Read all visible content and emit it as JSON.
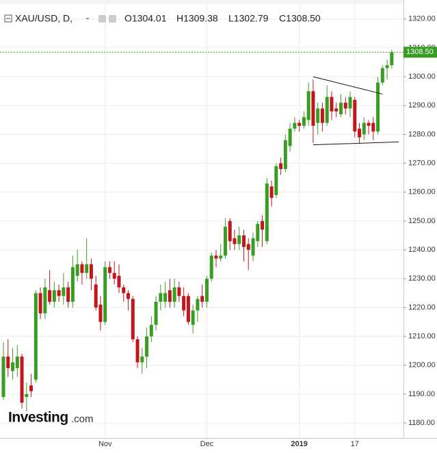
{
  "header": {
    "symbol": "XAU/USD, D,",
    "ohlc": [
      "O1304.01",
      "H1309.38",
      "L1302.79",
      "C1308.50"
    ]
  },
  "watermark": {
    "brand": "Investing",
    "suffix": ".com"
  },
  "chart_data": {
    "type": "candlestick",
    "up_color": "#3a9d23",
    "down_color": "#c3161c",
    "categories": [
      null,
      null,
      null,
      null,
      null,
      null,
      null,
      null,
      null,
      null,
      null,
      null,
      null,
      null,
      null,
      null,
      null,
      null,
      null,
      null,
      null,
      null,
      "Nov",
      null,
      null,
      null,
      null,
      null,
      null,
      null,
      null,
      null,
      null,
      null,
      null,
      null,
      null,
      null,
      null,
      null,
      null,
      null,
      null,
      null,
      "Dec",
      null,
      null,
      null,
      null,
      null,
      null,
      null,
      null,
      null,
      null,
      null,
      null,
      null,
      null,
      null,
      null,
      null,
      null,
      null,
      "2019",
      null,
      null,
      null,
      null,
      null,
      null,
      null,
      null,
      null,
      null,
      null,
      "17",
      null,
      null,
      null,
      null,
      null,
      null,
      null,
      null
    ],
    "open": [
      1189,
      1203,
      1198,
      1199,
      1203,
      1189,
      1193,
      1195,
      1225,
      1218,
      1226,
      1222,
      1226,
      1224,
      1227,
      1222,
      1231,
      1235,
      1232,
      1235,
      1228,
      1221,
      1215,
      1234,
      1232,
      1231,
      1227,
      1225,
      1223,
      1209,
      1201,
      1203,
      1210,
      1214,
      1222,
      1222,
      1226,
      1222,
      1227,
      1224,
      1224,
      1214,
      1219,
      1224,
      1222,
      1230,
      1238,
      1237,
      1238,
      1250,
      1244,
      1242,
      1245,
      1242,
      1238,
      1243,
      1250,
      1243,
      1262,
      1259,
      1270,
      1268,
      1276,
      1282,
      1284,
      1283,
      1285,
      1295,
      1284,
      1289,
      1284,
      1293,
      1289,
      1287,
      1291,
      1289,
      1292,
      1282,
      1280,
      1284,
      1284,
      1281,
      1298,
      1303,
      1304.01
    ],
    "high": [
      1208,
      1209,
      1206,
      1207,
      1204,
      1194,
      1197,
      1226,
      1227,
      1230,
      1233,
      1229,
      1228,
      1232,
      1229,
      1238,
      1240,
      1236,
      1244,
      1237,
      1231,
      1224,
      1236,
      1236,
      1236,
      1235,
      1228,
      1226,
      1224,
      1210,
      1206,
      1213,
      1217,
      1224,
      1228,
      1229,
      1230,
      1230,
      1229,
      1227,
      1225,
      1221,
      1224,
      1228,
      1231,
      1239,
      1240,
      1242,
      1251,
      1251,
      1247,
      1248,
      1247,
      1244,
      1246,
      1250,
      1252,
      1265,
      1264,
      1270,
      1272,
      1280,
      1284,
      1286,
      1285,
      1288,
      1298,
      1299,
      1291,
      1291,
      1297,
      1295,
      1291,
      1294,
      1293,
      1295,
      1293,
      1284,
      1286,
      1285,
      1286,
      1300,
      1304,
      1306,
      1309.38
    ],
    "low": [
      1188,
      1196,
      1195,
      1196,
      1185,
      1184,
      1189,
      1194,
      1216,
      1216,
      1221,
      1220,
      1222,
      1221,
      1220,
      1220,
      1229,
      1228,
      1230,
      1226,
      1219,
      1212,
      1214,
      1230,
      1228,
      1225,
      1222,
      1219,
      1208,
      1199,
      1197,
      1199,
      1208,
      1212,
      1219,
      1220,
      1220,
      1220,
      1222,
      1217,
      1214,
      1211,
      1215,
      1220,
      1220,
      1229,
      1234,
      1236,
      1237,
      1240,
      1240,
      1240,
      1236,
      1233,
      1236,
      1241,
      1241,
      1242,
      1255,
      1258,
      1266,
      1267,
      1274,
      1281,
      1281,
      1282,
      1283,
      1277,
      1280,
      1281,
      1283,
      1285,
      1286,
      1286,
      1287,
      1286,
      1279,
      1277,
      1278,
      1280,
      1278,
      1280,
      1297,
      1299,
      1302.79
    ],
    "close": [
      1203,
      1199,
      1201,
      1203,
      1187,
      1190,
      1191,
      1225,
      1218,
      1227,
      1222,
      1226,
      1224,
      1227,
      1222,
      1234,
      1235,
      1232,
      1235,
      1230,
      1220,
      1215,
      1234,
      1232,
      1230,
      1227,
      1225,
      1223,
      1209,
      1201,
      1203,
      1210,
      1214,
      1222,
      1225,
      1225,
      1222,
      1227,
      1224,
      1219,
      1215,
      1219,
      1223,
      1222,
      1230,
      1238,
      1237,
      1238,
      1248,
      1243,
      1242,
      1245,
      1241,
      1240,
      1244,
      1249,
      1247,
      1263,
      1258,
      1269,
      1268,
      1278,
      1282,
      1284,
      1283,
      1286,
      1295,
      1283,
      1289,
      1284,
      1293,
      1288,
      1288,
      1291,
      1289,
      1293,
      1281,
      1279,
      1284,
      1283,
      1281,
      1298,
      1303,
      1304,
      1308.5
    ],
    "ylim": [
      1174.8,
      1326.6
    ],
    "yticks": [
      {
        "value": 1180,
        "label": "1180.00"
      },
      {
        "value": 1190,
        "label": "1190.00"
      },
      {
        "value": 1200,
        "label": "1200.00"
      },
      {
        "value": 1210,
        "label": "1210.00"
      },
      {
        "value": 1220,
        "label": "1220.00"
      },
      {
        "value": 1230,
        "label": "1230.00"
      },
      {
        "value": 1240,
        "label": "1240.00"
      },
      {
        "value": 1250,
        "label": "1250.00"
      },
      {
        "value": 1260,
        "label": "1260.00"
      },
      {
        "value": 1270,
        "label": "1270.00"
      },
      {
        "value": 1280,
        "label": "1280.00"
      },
      {
        "value": 1290,
        "label": "1290.00"
      },
      {
        "value": 1300,
        "label": "1300.00"
      },
      {
        "value": 1310,
        "label": "1310.00"
      },
      {
        "value": 1320,
        "label": "1320.00"
      }
    ],
    "last_price": {
      "value": 1308.5,
      "label": "1308.50",
      "color": "#3a9d23"
    },
    "trendlines": [
      {
        "x": [
          67,
          82
        ],
        "y": [
          1300,
          1294
        ]
      },
      {
        "x": [
          67,
          85.5
        ],
        "y": [
          1276.4,
          1277.4
        ]
      }
    ],
    "grid": true
  }
}
